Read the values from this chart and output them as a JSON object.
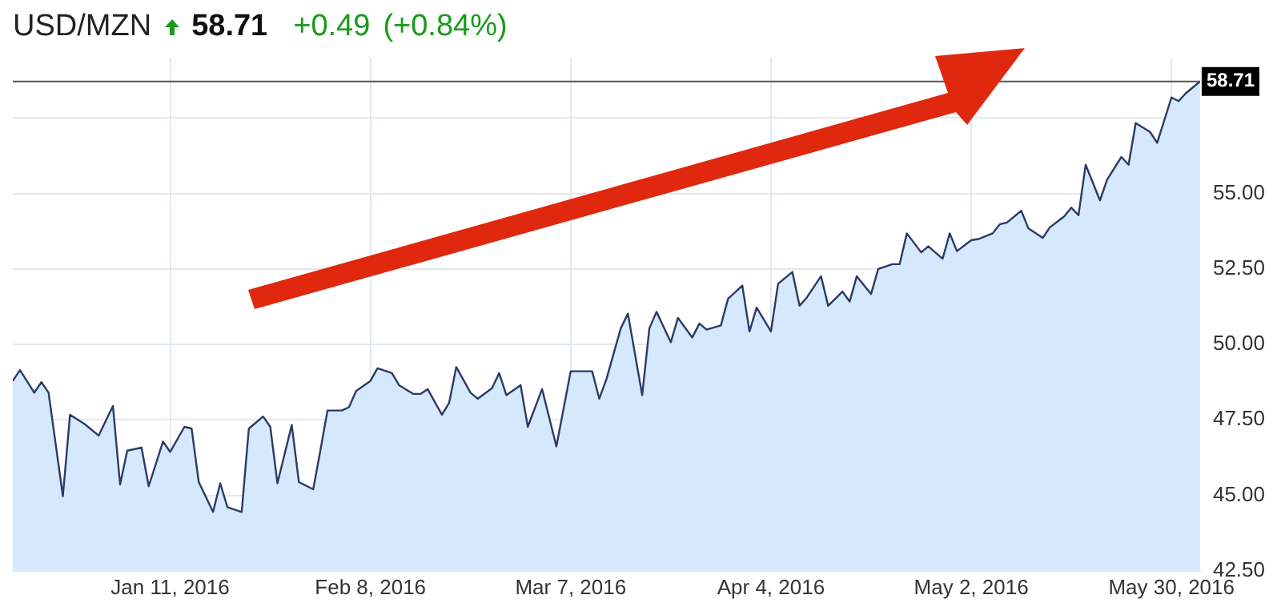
{
  "chart_data": {
    "type": "area",
    "title": "USD/MZN",
    "subtitle": "58.71",
    "annotations": [
      "+0.49",
      "(+0.84%)"
    ],
    "x": [
      "2015-12-20",
      "2015-12-21",
      "2015-12-23",
      "2015-12-24",
      "2015-12-25",
      "2015-12-27",
      "2015-12-28",
      "2015-12-30",
      "2016-01-01",
      "2016-01-03",
      "2016-01-04",
      "2016-01-05",
      "2016-01-07",
      "2016-01-08",
      "2016-01-10",
      "2016-01-11",
      "2016-01-13",
      "2016-01-14",
      "2016-01-15",
      "2016-01-17",
      "2016-01-18",
      "2016-01-19",
      "2016-01-21",
      "2016-01-22",
      "2016-01-24",
      "2016-01-25",
      "2016-01-26",
      "2016-01-28",
      "2016-01-29",
      "2016-01-31",
      "2016-02-01",
      "2016-02-02",
      "2016-02-04",
      "2016-02-05",
      "2016-02-06",
      "2016-02-08",
      "2016-02-09",
      "2016-02-11",
      "2016-02-12",
      "2016-02-14",
      "2016-02-15",
      "2016-02-16",
      "2016-02-18",
      "2016-02-19",
      "2016-02-20",
      "2016-02-22",
      "2016-02-23",
      "2016-02-25",
      "2016-02-26",
      "2016-02-27",
      "2016-02-29",
      "2016-03-01",
      "2016-03-03",
      "2016-03-04",
      "2016-03-05",
      "2016-03-07",
      "2016-03-08",
      "2016-03-10",
      "2016-03-11",
      "2016-03-12",
      "2016-03-14",
      "2016-03-15",
      "2016-03-17",
      "2016-03-18",
      "2016-03-19",
      "2016-03-21",
      "2016-03-22",
      "2016-03-24",
      "2016-03-25",
      "2016-03-26",
      "2016-03-28",
      "2016-03-29",
      "2016-03-31",
      "2016-04-01",
      "2016-04-02",
      "2016-04-04",
      "2016-04-05",
      "2016-04-07",
      "2016-04-08",
      "2016-04-09",
      "2016-04-11",
      "2016-04-12",
      "2016-04-14",
      "2016-04-15",
      "2016-04-16",
      "2016-04-18",
      "2016-04-19",
      "2016-04-21",
      "2016-04-22",
      "2016-04-23",
      "2016-04-25",
      "2016-04-26",
      "2016-04-28",
      "2016-04-29",
      "2016-04-30",
      "2016-05-02",
      "2016-05-03",
      "2016-05-05",
      "2016-05-06",
      "2016-05-07",
      "2016-05-09",
      "2016-05-10",
      "2016-05-12",
      "2016-05-13",
      "2016-05-15",
      "2016-05-16",
      "2016-05-17",
      "2016-05-18",
      "2016-05-20",
      "2016-05-21",
      "2016-05-23",
      "2016-05-24",
      "2016-05-25",
      "2016-05-27",
      "2016-05-28",
      "2016-05-30",
      "2016-05-31",
      "2016-06-01",
      "2016-06-03"
    ],
    "series": [
      {
        "color": "#2b3a67",
        "values": [
          48.79,
          49.15,
          48.4,
          48.75,
          48.4,
          44.97,
          47.67,
          47.37,
          46.98,
          47.96,
          45.36,
          46.48,
          46.58,
          45.3,
          46.78,
          46.44,
          47.27,
          47.21,
          45.44,
          44.45,
          45.4,
          44.61,
          44.45,
          47.21,
          47.61,
          47.27,
          45.4,
          47.33,
          45.44,
          45.2,
          46.48,
          47.81,
          47.81,
          47.92,
          48.46,
          48.79,
          49.21,
          49.05,
          48.65,
          48.36,
          48.36,
          48.52,
          47.67,
          48.06,
          49.25,
          48.4,
          48.2,
          48.55,
          49.05,
          48.32,
          48.65,
          47.27,
          48.52,
          47.57,
          46.62,
          49.11,
          49.11,
          49.11,
          48.2,
          48.85,
          50.53,
          51.02,
          48.32,
          50.53,
          51.08,
          50.07,
          50.88,
          50.23,
          50.69,
          50.49,
          50.63,
          51.51,
          51.95,
          50.43,
          51.22,
          50.43,
          52.01,
          52.4,
          51.28,
          51.55,
          52.26,
          51.28,
          51.75,
          51.42,
          52.26,
          51.67,
          52.5,
          52.66,
          52.66,
          53.68,
          53.05,
          53.25,
          52.84,
          53.68,
          53.09,
          53.45,
          53.49,
          53.68,
          53.98,
          54.04,
          54.43,
          53.84,
          53.53,
          53.88,
          54.24,
          54.53,
          54.28,
          55.95,
          54.77,
          55.46,
          56.21,
          55.95,
          57.33,
          57.04,
          56.68,
          58.18,
          58.06,
          58.32,
          58.71
        ]
      }
    ],
    "xlim": [
      "2015-12-20",
      "2016-06-03"
    ],
    "xticks": [
      {
        "value": "2016-01-11",
        "label": "Jan 11, 2016"
      },
      {
        "value": "2016-02-08",
        "label": "Feb 8, 2016"
      },
      {
        "value": "2016-03-07",
        "label": "Mar 7, 2016"
      },
      {
        "value": "2016-04-04",
        "label": "Apr 4, 2016"
      },
      {
        "value": "2016-05-02",
        "label": "May 2, 2016"
      },
      {
        "value": "2016-05-30",
        "label": "May 30, 2016"
      }
    ],
    "ylim": [
      42.5,
      59.5
    ],
    "yticks": [
      {
        "value": 42.5,
        "label": "42.50"
      },
      {
        "value": 45,
        "label": "45.00"
      },
      {
        "value": 47.5,
        "label": "47.50"
      },
      {
        "value": 50,
        "label": "50.00"
      },
      {
        "value": 52.5,
        "label": "52.50"
      },
      {
        "value": 55,
        "label": "55.00"
      },
      {
        "value": 57.5,
        "label": null
      }
    ],
    "ref_lines": [
      {
        "axis": "y",
        "value": 58.71,
        "label": "58.71",
        "color": "#555555"
      }
    ],
    "grid": true,
    "legend": false,
    "marker": "none",
    "line_style": "solid"
  }
}
